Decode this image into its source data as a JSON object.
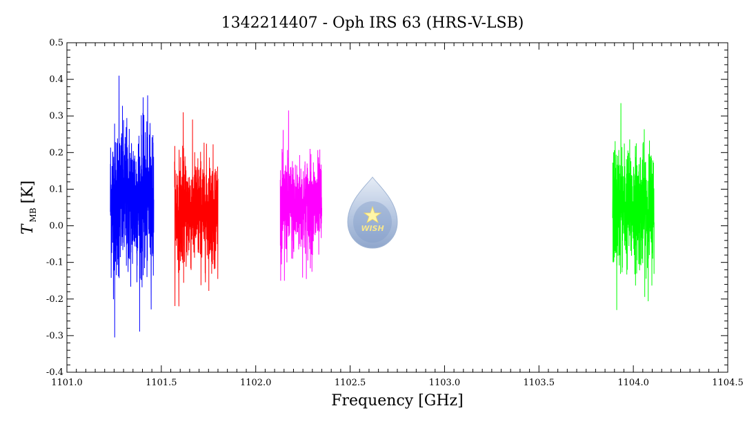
{
  "chart_data": {
    "type": "line",
    "title": "1342214407 - Oph IRS 63 (HRS-V-LSB)",
    "xlabel": "Frequency [GHz]",
    "ylabel_main": "T",
    "ylabel_sub": "MB",
    "ylabel_unit": "[K]",
    "xlim": [
      1101.0,
      1104.5
    ],
    "ylim": [
      -0.4,
      0.5
    ],
    "x_ticks": [
      "1101.0",
      "1101.5",
      "1102.0",
      "1102.5",
      "1103.0",
      "1103.5",
      "1104.0",
      "1104.5"
    ],
    "y_ticks": [
      "-0.4",
      "-0.3",
      "-0.2",
      "-0.1",
      "0.0",
      "0.1",
      "0.2",
      "0.3",
      "0.4",
      "0.5"
    ],
    "grid": false,
    "legend": "none",
    "series": [
      {
        "color": "#0000ff",
        "x_range": [
          1101.23,
          1101.46
        ],
        "mean": 0.07,
        "max": 0.41,
        "min": -0.305
      },
      {
        "color": "#ff0000",
        "x_range": [
          1101.57,
          1101.8
        ],
        "mean": 0.04,
        "max": 0.31,
        "min": -0.22
      },
      {
        "color": "#ff00ff",
        "x_range": [
          1102.13,
          1102.35
        ],
        "mean": 0.05,
        "max": 0.315,
        "min": -0.15
      },
      {
        "color": "#00ff00",
        "x_range": [
          1103.89,
          1104.11
        ],
        "mean": 0.05,
        "max": 0.335,
        "min": -0.23
      }
    ]
  },
  "logo": {
    "text": "WISH"
  }
}
